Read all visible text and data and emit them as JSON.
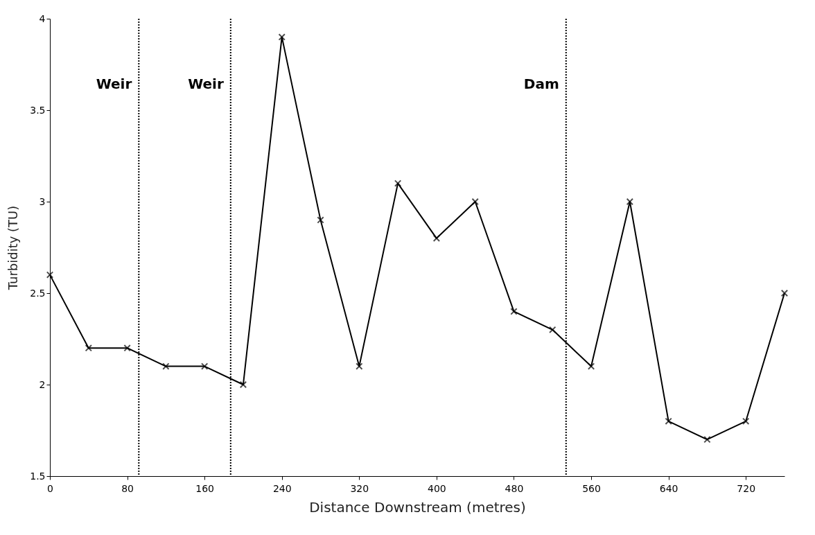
{
  "chart_data": {
    "type": "line",
    "xlabel": "Distance Downstream (metres)",
    "ylabel": "Turbidity (TU)",
    "x": [
      0,
      40,
      80,
      120,
      160,
      200,
      240,
      280,
      320,
      360,
      400,
      440,
      480,
      520,
      560,
      600,
      640,
      680,
      720,
      760
    ],
    "series": [
      {
        "color": "#000000",
        "values": [
          2.6,
          2.2,
          2.2,
          2.1,
          2.1,
          2.0,
          3.9,
          2.9,
          2.1,
          3.1,
          2.8,
          3.0,
          2.4,
          2.3,
          2.1,
          3.0,
          1.8,
          1.7,
          1.8,
          2.5
        ]
      }
    ],
    "xlim": [
      0,
      760
    ],
    "xticks": [
      0,
      80,
      160,
      240,
      320,
      400,
      480,
      560,
      640,
      720
    ],
    "ylim": [
      1.5,
      4
    ],
    "yticks": [
      1.5,
      2,
      2.5,
      3,
      3.5,
      4
    ],
    "ref_lines": [
      {
        "axis": "x",
        "value": 92,
        "label": "Weir",
        "line_style": "dotted",
        "color": "#000000"
      },
      {
        "axis": "x",
        "value": 187,
        "label": "Weir",
        "line_style": "dotted",
        "color": "#000000"
      },
      {
        "axis": "x",
        "value": 534,
        "label": "Dam",
        "line_style": "dotted",
        "color": "#000000"
      }
    ],
    "marker": "cross",
    "line_style": "solid",
    "grid": false
  }
}
